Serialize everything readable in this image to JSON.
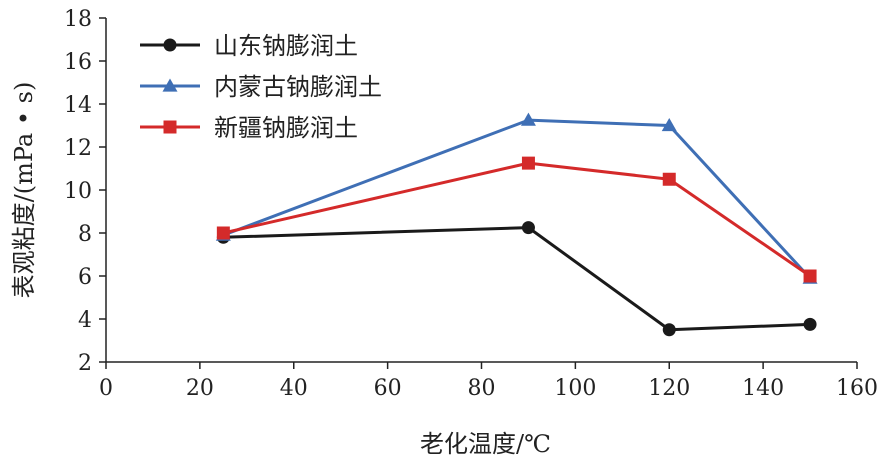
{
  "chart_data": {
    "type": "line",
    "xlabel": "老化温度/℃",
    "ylabel": "表观粘度/(mPa • s)",
    "xlim": [
      0,
      160
    ],
    "ylim": [
      2,
      18
    ],
    "xticks": [
      0,
      20,
      40,
      60,
      80,
      100,
      120,
      140,
      160
    ],
    "yticks": [
      2,
      4,
      6,
      8,
      10,
      12,
      14,
      16,
      18
    ],
    "grid": false,
    "legend_position": "top-left",
    "series": [
      {
        "name": "山东钠膨润土",
        "color": "#1a1a1a",
        "marker": "circle",
        "x": [
          25,
          90,
          120,
          150
        ],
        "y": [
          7.8,
          8.25,
          3.5,
          3.75
        ]
      },
      {
        "name": "内蒙古钠膨润土",
        "color": "#3f6fb5",
        "marker": "triangle",
        "x": [
          25,
          90,
          120,
          150
        ],
        "y": [
          7.9,
          13.25,
          13.0,
          5.9
        ]
      },
      {
        "name": "新疆钠膨润土",
        "color": "#d42a2a",
        "marker": "square",
        "x": [
          25,
          90,
          120,
          150
        ],
        "y": [
          8.0,
          11.25,
          10.5,
          6.0
        ]
      }
    ]
  }
}
